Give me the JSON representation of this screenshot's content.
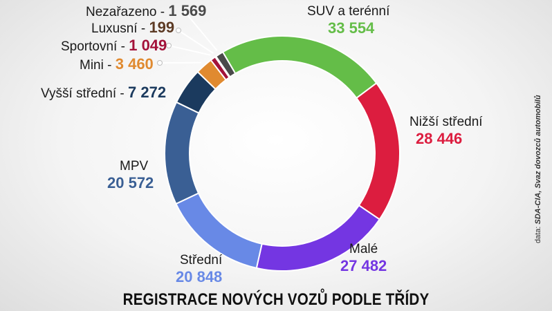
{
  "chart_data": {
    "type": "pie",
    "title": "REGISTRACE NOVÝCH VOZŮ PODLE TŘÍDY",
    "total_label": "",
    "slices": [
      {
        "label": "SUV a terénní",
        "value": 33554,
        "display": "33 554",
        "color": "#64bd48"
      },
      {
        "label": "Nižší střední",
        "value": 28446,
        "display": "28 446",
        "color": "#dc1d3f"
      },
      {
        "label": "Malé",
        "value": 27482,
        "display": "27 482",
        "color": "#7436e2"
      },
      {
        "label": "Střední",
        "value": 20848,
        "display": "20 848",
        "color": "#6889e6"
      },
      {
        "label": "MPV",
        "value": 20572,
        "display": "20 572",
        "color": "#3a5f94"
      },
      {
        "label": "Vyšší střední",
        "value": 7272,
        "display": "7 272",
        "color": "#1b3a5e"
      },
      {
        "label": "Mini",
        "value": 3460,
        "display": "3 460",
        "color": "#e08a30"
      },
      {
        "label": "Sportovní",
        "value": 1049,
        "display": "1 049",
        "color": "#a3123a"
      },
      {
        "label": "Luxusní",
        "value": 199,
        "display": "199",
        "color": "#5c3a24"
      },
      {
        "label": "Nezařazeno",
        "value": 1569,
        "display": "1 569",
        "color": "#4a4a4a"
      }
    ]
  },
  "labels": {
    "suv": {
      "name": "SUV a terénní",
      "value": "33 554"
    },
    "nizsi": {
      "name": "Nižší střední",
      "value": "28 446"
    },
    "male": {
      "name": "Malé",
      "value": "27 482"
    },
    "stredni": {
      "name": "Střední",
      "value": "20 848"
    },
    "mpv": {
      "name": "MPV",
      "value": "20 572"
    },
    "vyssi": {
      "name": "Vyšší střední -",
      "value": "7 272"
    },
    "mini": {
      "name": "Mini -",
      "value": "3 460"
    },
    "sportovni": {
      "name": "Sportovní -",
      "value": "1 049"
    },
    "luxusni": {
      "name": "Luxusní -",
      "value": "199"
    },
    "nezarazeno": {
      "name": "Nezařazeno -",
      "value": "1 569"
    }
  },
  "source": {
    "prefix": "data:",
    "text": "SDA-CIA, Svaz dovozců automobilů"
  }
}
